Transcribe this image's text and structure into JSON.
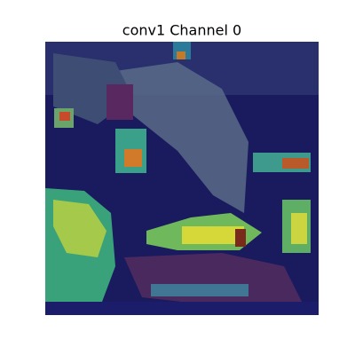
{
  "title": "conv1 Channel 0"
}
